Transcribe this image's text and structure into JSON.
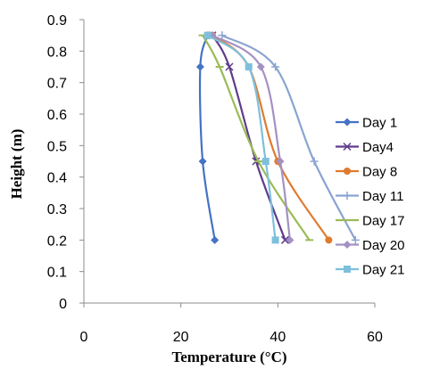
{
  "chart_data": {
    "type": "line",
    "xlabel": "Temperature (°C)",
    "ylabel": "Height  (m)",
    "xlim": [
      0,
      60
    ],
    "ylim": [
      0,
      0.9
    ],
    "xticks": [
      0,
      20,
      40,
      60
    ],
    "yticks": [
      0,
      0.1,
      0.2,
      0.3,
      0.4,
      0.5,
      0.6,
      0.7,
      0.8,
      0.9
    ],
    "grid": false,
    "legend_position": "right",
    "series": [
      {
        "name": "Day 1",
        "color": "#4472c4",
        "marker": "diamond",
        "points": [
          [
            27,
            0.2
          ],
          [
            24.5,
            0.45
          ],
          [
            24,
            0.75
          ],
          [
            25.5,
            0.85
          ]
        ]
      },
      {
        "name": "Day4",
        "color": "#5f3c8c",
        "marker": "x",
        "points": [
          [
            41.5,
            0.2
          ],
          [
            35.5,
            0.45
          ],
          [
            30,
            0.75
          ],
          [
            26.5,
            0.85
          ]
        ]
      },
      {
        "name": "Day 8",
        "color": "#e07a2e",
        "marker": "circle",
        "points": [
          [
            50.5,
            0.2
          ],
          [
            40,
            0.45
          ],
          [
            34,
            0.75
          ],
          [
            26.5,
            0.85
          ]
        ]
      },
      {
        "name": "Day 11",
        "color": "#8aa4d0",
        "marker": "plus",
        "points": [
          [
            56,
            0.2
          ],
          [
            47.5,
            0.45
          ],
          [
            39.5,
            0.75
          ],
          [
            28.5,
            0.85
          ]
        ]
      },
      {
        "name": "Day 17",
        "color": "#9bbb59",
        "marker": "dash",
        "points": [
          [
            46.5,
            0.2
          ],
          [
            36,
            0.45
          ],
          [
            28,
            0.75
          ],
          [
            24.5,
            0.85
          ]
        ]
      },
      {
        "name": "Day 20",
        "color": "#a391c4",
        "marker": "diamond",
        "points": [
          [
            42.5,
            0.2
          ],
          [
            40.5,
            0.45
          ],
          [
            36.5,
            0.75
          ],
          [
            26.5,
            0.85
          ]
        ]
      },
      {
        "name": "Day 21",
        "color": "#7ec0dc",
        "marker": "square",
        "points": [
          [
            39.5,
            0.2
          ],
          [
            37.5,
            0.45
          ],
          [
            34,
            0.75
          ],
          [
            25.5,
            0.85
          ]
        ]
      }
    ]
  }
}
